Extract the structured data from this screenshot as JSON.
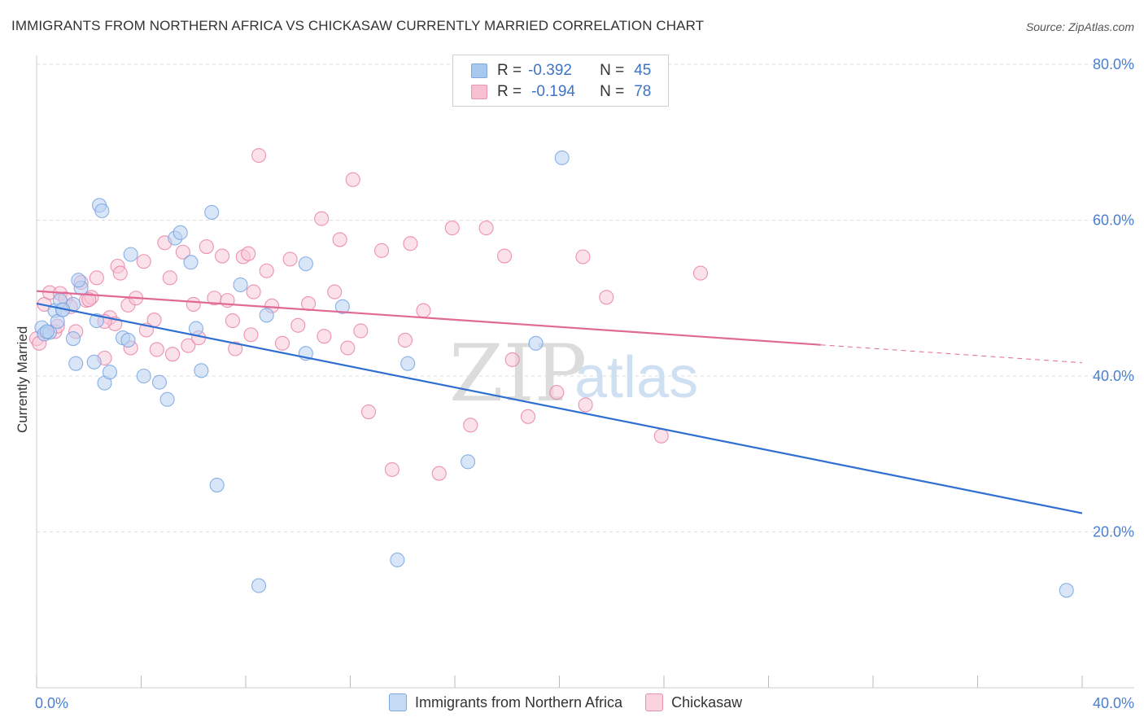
{
  "title": "IMMIGRANTS FROM NORTHERN AFRICA VS CHICKASAW CURRENTLY MARRIED CORRELATION CHART",
  "source": "Source: ZipAtlas.com",
  "watermark": {
    "zip": "ZIP",
    "atlas": "atlas"
  },
  "legend": {
    "rows": [
      {
        "r_label": "R =",
        "r_value": "-0.392",
        "n_label": "N =",
        "n_value": "45",
        "color": "#a9c8f0",
        "border": "#7ea7de"
      },
      {
        "r_label": "R =",
        "r_value": "-0.194",
        "n_label": "N =",
        "n_value": "78",
        "color": "#f7c0d1",
        "border": "#e893b0"
      }
    ]
  },
  "bottom_legend": [
    {
      "label": "Immigrants from Northern Africa",
      "color": "#c6dbf6",
      "border": "#7ea7de"
    },
    {
      "label": "Chickasaw",
      "color": "#fbd3df",
      "border": "#e893b0"
    }
  ],
  "chart_data": {
    "type": "scatter",
    "title": "IMMIGRANTS FROM NORTHERN AFRICA VS CHICKASAW CURRENTLY MARRIED CORRELATION CHART",
    "xlabel": "",
    "ylabel": "Currently Married",
    "xlim": [
      0,
      40
    ],
    "ylim": [
      0,
      80
    ],
    "x_tick_labels": [
      "0.0%",
      "40.0%"
    ],
    "y_ticks": [
      20,
      40,
      60,
      80
    ],
    "y_tick_labels": [
      "20.0%",
      "40.0%",
      "60.0%",
      "80.0%"
    ],
    "grid": "horizontal dashed",
    "legend_position": "top-center",
    "series": [
      {
        "name": "Immigrants from Northern Africa",
        "color": "#6fa0e0",
        "fill": "#b9d2f3",
        "points": [
          [
            0.2,
            46.2
          ],
          [
            0.3,
            45.4
          ],
          [
            0.5,
            45.6
          ],
          [
            0.7,
            48.4
          ],
          [
            0.8,
            47.0
          ],
          [
            0.9,
            49.7
          ],
          [
            1.0,
            48.5
          ],
          [
            1.4,
            44.8
          ],
          [
            1.5,
            41.6
          ],
          [
            1.7,
            51.3
          ],
          [
            2.2,
            41.8
          ],
          [
            2.3,
            47.1
          ],
          [
            2.6,
            39.1
          ],
          [
            2.8,
            40.5
          ],
          [
            3.3,
            44.9
          ],
          [
            3.5,
            44.6
          ],
          [
            3.6,
            55.6
          ],
          [
            4.1,
            40.0
          ],
          [
            4.7,
            39.2
          ],
          [
            5.0,
            37.0
          ],
          [
            5.3,
            57.7
          ],
          [
            5.5,
            58.4
          ],
          [
            5.9,
            54.6
          ],
          [
            6.3,
            40.7
          ],
          [
            6.7,
            61.0
          ],
          [
            6.9,
            26.0
          ],
          [
            7.8,
            51.7
          ],
          [
            8.5,
            13.1
          ],
          [
            8.8,
            47.8
          ],
          [
            10.3,
            54.4
          ],
          [
            10.3,
            42.9
          ],
          [
            11.7,
            48.9
          ],
          [
            13.8,
            16.4
          ],
          [
            14.2,
            41.6
          ],
          [
            16.5,
            29.0
          ],
          [
            19.1,
            44.2
          ],
          [
            20.1,
            68.0
          ],
          [
            39.4,
            12.5
          ],
          [
            2.4,
            61.9
          ],
          [
            2.5,
            61.2
          ],
          [
            1.4,
            49.2
          ],
          [
            1.0,
            48.5
          ],
          [
            0.4,
            45.7
          ],
          [
            1.6,
            52.3
          ],
          [
            6.1,
            46.1
          ]
        ],
        "trend": {
          "x": [
            0,
            40
          ],
          "y": [
            49.3,
            22.4
          ]
        }
      },
      {
        "name": "Chickasaw",
        "color": "#e97aa0",
        "fill": "#f8c9d8",
        "points": [
          [
            0.0,
            44.8
          ],
          [
            0.1,
            44.2
          ],
          [
            0.3,
            49.2
          ],
          [
            0.5,
            50.7
          ],
          [
            0.7,
            45.7
          ],
          [
            0.9,
            50.6
          ],
          [
            1.1,
            49.9
          ],
          [
            1.5,
            45.7
          ],
          [
            1.7,
            52.0
          ],
          [
            1.9,
            49.7
          ],
          [
            2.1,
            50.1
          ],
          [
            2.3,
            52.6
          ],
          [
            2.6,
            42.3
          ],
          [
            2.8,
            47.5
          ],
          [
            3.0,
            46.7
          ],
          [
            3.1,
            54.1
          ],
          [
            3.2,
            53.2
          ],
          [
            3.5,
            49.1
          ],
          [
            3.6,
            43.6
          ],
          [
            3.8,
            50.0
          ],
          [
            4.1,
            54.7
          ],
          [
            4.5,
            47.2
          ],
          [
            4.6,
            43.4
          ],
          [
            4.9,
            57.1
          ],
          [
            5.1,
            52.6
          ],
          [
            5.2,
            42.8
          ],
          [
            5.6,
            55.9
          ],
          [
            5.8,
            43.9
          ],
          [
            6.0,
            49.2
          ],
          [
            6.2,
            44.9
          ],
          [
            6.5,
            56.6
          ],
          [
            6.8,
            50.0
          ],
          [
            7.1,
            55.4
          ],
          [
            7.3,
            49.7
          ],
          [
            7.5,
            47.1
          ],
          [
            7.6,
            43.5
          ],
          [
            7.9,
            55.3
          ],
          [
            8.1,
            55.7
          ],
          [
            8.3,
            50.8
          ],
          [
            8.5,
            68.3
          ],
          [
            8.8,
            53.5
          ],
          [
            9.0,
            49.0
          ],
          [
            9.4,
            44.2
          ],
          [
            9.7,
            55.0
          ],
          [
            10.0,
            46.5
          ],
          [
            10.4,
            49.3
          ],
          [
            10.9,
            60.2
          ],
          [
            11.0,
            45.1
          ],
          [
            11.4,
            50.8
          ],
          [
            11.6,
            57.5
          ],
          [
            11.9,
            43.6
          ],
          [
            12.1,
            65.2
          ],
          [
            12.4,
            45.8
          ],
          [
            12.7,
            35.4
          ],
          [
            13.2,
            56.1
          ],
          [
            13.6,
            28.0
          ],
          [
            14.1,
            44.6
          ],
          [
            14.3,
            57.0
          ],
          [
            14.8,
            48.4
          ],
          [
            15.4,
            27.5
          ],
          [
            15.9,
            59.0
          ],
          [
            16.6,
            33.7
          ],
          [
            17.2,
            59.0
          ],
          [
            17.9,
            55.4
          ],
          [
            18.2,
            42.1
          ],
          [
            18.8,
            34.8
          ],
          [
            19.9,
            37.9
          ],
          [
            20.9,
            55.3
          ],
          [
            21.0,
            36.3
          ],
          [
            21.8,
            50.1
          ],
          [
            23.9,
            32.3
          ],
          [
            25.4,
            53.2
          ],
          [
            0.8,
            46.4
          ],
          [
            1.3,
            48.9
          ],
          [
            2.0,
            49.8
          ],
          [
            2.6,
            47.0
          ],
          [
            8.2,
            45.3
          ],
          [
            4.2,
            45.9
          ]
        ],
        "trend": {
          "x": [
            0,
            30
          ],
          "y": [
            50.9,
            44.0
          ]
        },
        "trend_extension": {
          "x": [
            30,
            40
          ],
          "y": [
            44.0,
            41.7
          ]
        }
      }
    ]
  }
}
